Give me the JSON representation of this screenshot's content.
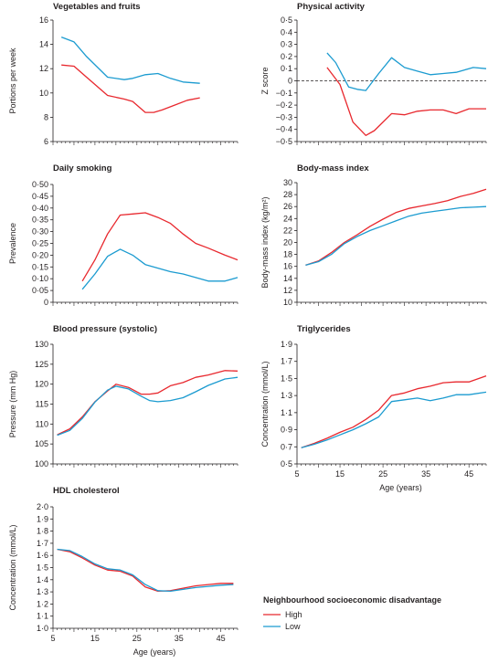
{
  "colors": {
    "high": "#e8282e",
    "low": "#1b9bd0",
    "axis": "#231f20"
  },
  "legend": {
    "title": "Neighbourhood socioeconomic disadvantage",
    "items": [
      {
        "label": "High",
        "color": "#e8282e"
      },
      {
        "label": "Low",
        "color": "#1b9bd0"
      }
    ]
  },
  "chart_data": [
    {
      "id": "veg",
      "type": "line",
      "title": "Vegetables and fruits",
      "ylabel": "Portions per week",
      "xlabel": "",
      "ylim": [
        6,
        16
      ],
      "yticks": [
        6,
        8,
        10,
        12,
        14,
        16
      ],
      "ytick_labels": [
        "6",
        "8",
        "10",
        "12",
        "14",
        "16"
      ],
      "xlim": [
        5,
        49
      ],
      "xticks": [],
      "xtick_labels": [],
      "series": [
        {
          "name": "High",
          "color": "#e8282e",
          "x": [
            7,
            10,
            13,
            18,
            22,
            24,
            27,
            29,
            31,
            34,
            37,
            40
          ],
          "y": [
            12.3,
            12.2,
            11.3,
            9.8,
            9.5,
            9.3,
            8.4,
            8.4,
            8.6,
            9.0,
            9.4,
            9.6
          ]
        },
        {
          "name": "Low",
          "color": "#1b9bd0",
          "x": [
            7,
            10,
            13,
            18,
            22,
            24,
            27,
            30,
            33,
            36,
            40
          ],
          "y": [
            14.6,
            14.2,
            13.0,
            11.3,
            11.1,
            11.2,
            11.5,
            11.6,
            11.2,
            10.9,
            10.8
          ]
        }
      ]
    },
    {
      "id": "pa",
      "type": "line",
      "title": "Physical activity",
      "ylabel": "Z score",
      "xlabel": "",
      "ylim": [
        -0.5,
        0.5
      ],
      "yticks": [
        -0.5,
        -0.4,
        -0.3,
        -0.2,
        -0.1,
        0,
        0.1,
        0.2,
        0.3,
        0.4,
        0.5
      ],
      "ytick_labels": [
        "−0·5",
        "−0·4",
        "−0·3",
        "−0·2",
        "−0·1",
        "0",
        "0·1",
        "0·2",
        "0·3",
        "0·4",
        "0·5"
      ],
      "reference_line": 0,
      "xlim": [
        5,
        49
      ],
      "xticks": [],
      "xtick_labels": [],
      "series": [
        {
          "name": "High",
          "color": "#e8282e",
          "x": [
            12,
            15,
            18,
            21,
            23,
            27,
            30,
            33,
            36,
            39,
            42,
            45,
            49
          ],
          "y": [
            0.11,
            -0.03,
            -0.34,
            -0.45,
            -0.41,
            -0.27,
            -0.28,
            -0.25,
            -0.24,
            -0.24,
            -0.27,
            -0.23,
            -0.23
          ]
        },
        {
          "name": "Low",
          "color": "#1b9bd0",
          "x": [
            12,
            14,
            17,
            19,
            21,
            24,
            27,
            30,
            33,
            36,
            39,
            42,
            46,
            49
          ],
          "y": [
            0.23,
            0.15,
            -0.05,
            -0.07,
            -0.08,
            0.06,
            0.19,
            0.11,
            0.08,
            0.05,
            0.06,
            0.07,
            0.11,
            0.1
          ]
        }
      ]
    },
    {
      "id": "smoke",
      "type": "line",
      "title": "Daily smoking",
      "ylabel": "Prevalence",
      "xlabel": "",
      "ylim": [
        0,
        0.5
      ],
      "yticks": [
        0,
        0.05,
        0.1,
        0.15,
        0.2,
        0.25,
        0.3,
        0.35,
        0.4,
        0.45,
        0.5
      ],
      "ytick_labels": [
        "0",
        "0·05",
        "0·10",
        "0·15",
        "0·20",
        "0·25",
        "0·30",
        "0·35",
        "0·40",
        "0·45",
        "0·50"
      ],
      "xlim": [
        5,
        49
      ],
      "xticks": [],
      "xtick_labels": [],
      "series": [
        {
          "name": "High",
          "color": "#e8282e",
          "x": [
            12,
            15,
            18,
            21,
            24,
            27,
            30,
            33,
            36,
            39,
            42,
            46,
            49
          ],
          "y": [
            0.09,
            0.18,
            0.29,
            0.37,
            0.375,
            0.38,
            0.36,
            0.335,
            0.29,
            0.25,
            0.23,
            0.2,
            0.18
          ]
        },
        {
          "name": "Low",
          "color": "#1b9bd0",
          "x": [
            12,
            15,
            18,
            21,
            24,
            27,
            30,
            33,
            36,
            39,
            42,
            46,
            49
          ],
          "y": [
            0.055,
            0.12,
            0.195,
            0.225,
            0.2,
            0.16,
            0.145,
            0.13,
            0.12,
            0.105,
            0.09,
            0.09,
            0.105
          ]
        }
      ]
    },
    {
      "id": "bmi",
      "type": "line",
      "title": "Body-mass index",
      "ylabel": "Body-mass index (kg/m²)",
      "xlabel": "",
      "ylim": [
        10,
        30
      ],
      "yticks": [
        10,
        12,
        14,
        16,
        18,
        20,
        22,
        24,
        26,
        28,
        30
      ],
      "ytick_labels": [
        "10",
        "12",
        "14",
        "16",
        "18",
        "20",
        "22",
        "24",
        "26",
        "28",
        "30"
      ],
      "xlim": [
        5,
        49
      ],
      "xticks": [],
      "xtick_labels": [],
      "series": [
        {
          "name": "High",
          "color": "#e8282e",
          "x": [
            7,
            10,
            13,
            16,
            19,
            22,
            25,
            28,
            31,
            34,
            37,
            40,
            43,
            46,
            49
          ],
          "y": [
            16.2,
            16.9,
            18.3,
            20.0,
            21.3,
            22.7,
            23.9,
            25.0,
            25.7,
            26.1,
            26.5,
            27.0,
            27.7,
            28.2,
            28.9
          ]
        },
        {
          "name": "Low",
          "color": "#1b9bd0",
          "x": [
            7,
            10,
            13,
            16,
            19,
            22,
            25,
            28,
            31,
            34,
            37,
            40,
            43,
            46,
            49
          ],
          "y": [
            16.2,
            16.8,
            18.0,
            19.8,
            21.0,
            22.0,
            22.8,
            23.6,
            24.4,
            24.9,
            25.2,
            25.5,
            25.8,
            25.9,
            26.0
          ]
        }
      ]
    },
    {
      "id": "bp",
      "type": "line",
      "title": "Blood pressure (systolic)",
      "ylabel": "Pressure (mm Hg)",
      "xlabel": "",
      "ylim": [
        100,
        130
      ],
      "yticks": [
        100,
        105,
        110,
        115,
        120,
        125,
        130
      ],
      "ytick_labels": [
        "100",
        "105",
        "110",
        "115",
        "120",
        "125",
        "130"
      ],
      "xlim": [
        5,
        49
      ],
      "xticks": [],
      "xtick_labels": [],
      "series": [
        {
          "name": "High",
          "color": "#e8282e",
          "x": [
            6,
            9,
            12,
            15,
            18,
            20,
            23,
            26,
            28,
            30,
            33,
            36,
            39,
            42,
            46,
            49
          ],
          "y": [
            107.3,
            108.8,
            111.8,
            115.6,
            118.3,
            120.0,
            119.2,
            117.5,
            117.5,
            117.8,
            119.6,
            120.4,
            121.7,
            122.3,
            123.4,
            123.3
          ]
        },
        {
          "name": "Low",
          "color": "#1b9bd0",
          "x": [
            6,
            9,
            12,
            15,
            18,
            20,
            23,
            26,
            28,
            30,
            33,
            36,
            39,
            42,
            46,
            49
          ],
          "y": [
            107.2,
            108.4,
            111.4,
            115.5,
            118.5,
            119.5,
            118.8,
            117.0,
            115.9,
            115.6,
            115.9,
            116.6,
            118.1,
            119.7,
            121.3,
            121.7
          ]
        }
      ]
    },
    {
      "id": "tg",
      "type": "line",
      "title": "Triglycerides",
      "ylabel": "Concentration (mmol/L)",
      "xlabel": "Age (years)",
      "ylim": [
        0.5,
        1.9
      ],
      "yticks": [
        0.5,
        0.7,
        0.9,
        1.1,
        1.3,
        1.5,
        1.7,
        1.9
      ],
      "ytick_labels": [
        "0·5",
        "0·7",
        "0·9",
        "1·1",
        "1·3",
        "1·5",
        "1·7",
        "1·9"
      ],
      "xlim": [
        5,
        49
      ],
      "xticks": [
        5,
        15,
        25,
        35,
        45
      ],
      "xtick_labels": [
        "5",
        "15",
        "25",
        "35",
        "45"
      ],
      "series": [
        {
          "name": "High",
          "color": "#e8282e",
          "x": [
            6,
            9,
            12,
            15,
            18,
            21,
            24,
            27,
            30,
            33,
            36,
            39,
            42,
            45,
            49
          ],
          "y": [
            0.69,
            0.74,
            0.8,
            0.87,
            0.93,
            1.02,
            1.13,
            1.3,
            1.33,
            1.38,
            1.41,
            1.45,
            1.46,
            1.46,
            1.53
          ]
        },
        {
          "name": "Low",
          "color": "#1b9bd0",
          "x": [
            6,
            9,
            12,
            15,
            18,
            21,
            24,
            27,
            30,
            33,
            36,
            39,
            42,
            45,
            49
          ],
          "y": [
            0.69,
            0.73,
            0.78,
            0.84,
            0.9,
            0.97,
            1.05,
            1.23,
            1.25,
            1.27,
            1.24,
            1.27,
            1.31,
            1.31,
            1.34
          ]
        }
      ]
    },
    {
      "id": "hdl",
      "type": "line",
      "title": "HDL cholesterol",
      "ylabel": "Concentration (mmol/L)",
      "xlabel": "Age (years)",
      "ylim": [
        1.0,
        2.0
      ],
      "yticks": [
        1.0,
        1.1,
        1.2,
        1.3,
        1.4,
        1.5,
        1.6,
        1.7,
        1.8,
        1.9,
        2.0
      ],
      "ytick_labels": [
        "1·0",
        "1·1",
        "1·2",
        "1·3",
        "1·4",
        "1·5",
        "1·6",
        "1·7",
        "1·8",
        "1·9",
        "2·0"
      ],
      "xlim": [
        5,
        49
      ],
      "xticks": [
        5,
        15,
        25,
        35,
        45
      ],
      "xtick_labels": [
        "5",
        "15",
        "25",
        "35",
        "45"
      ],
      "series": [
        {
          "name": "High",
          "color": "#e8282e",
          "x": [
            6,
            9,
            12,
            15,
            18,
            21,
            24,
            27,
            30,
            33,
            36,
            39,
            42,
            45,
            48
          ],
          "y": [
            1.65,
            1.63,
            1.58,
            1.52,
            1.48,
            1.47,
            1.43,
            1.34,
            1.305,
            1.31,
            1.33,
            1.35,
            1.36,
            1.37,
            1.37
          ]
        },
        {
          "name": "Low",
          "color": "#1b9bd0",
          "x": [
            6,
            9,
            12,
            15,
            18,
            21,
            24,
            27,
            30,
            33,
            36,
            39,
            42,
            45,
            48
          ],
          "y": [
            1.65,
            1.64,
            1.59,
            1.53,
            1.49,
            1.48,
            1.44,
            1.36,
            1.31,
            1.305,
            1.32,
            1.335,
            1.345,
            1.355,
            1.36
          ]
        }
      ]
    }
  ]
}
